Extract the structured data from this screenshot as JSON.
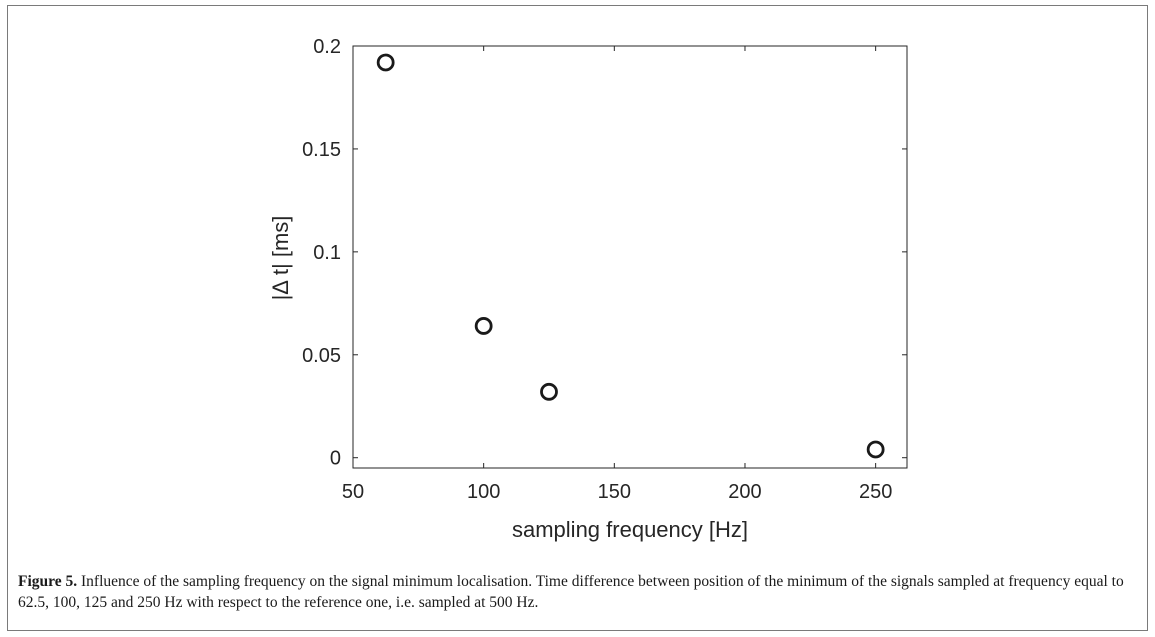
{
  "chart_data": {
    "type": "scatter",
    "xlabel": "sampling frequency [Hz]",
    "ylabel": "|Δ t| [ms]",
    "xlim": [
      50,
      262
    ],
    "ylim": [
      -0.005,
      0.2
    ],
    "x_ticks": [
      50,
      100,
      150,
      200,
      250
    ],
    "y_ticks": [
      0,
      0.05,
      0.1,
      0.15,
      0.2
    ],
    "x_tick_labels": [
      "50",
      "100",
      "150",
      "200",
      "250"
    ],
    "y_tick_labels": [
      "0",
      "0.05",
      "0.1",
      "0.15",
      "0.2"
    ],
    "grid": false,
    "marker": "open-circle",
    "marker_color": "#1a1a1a",
    "points": [
      {
        "x": 62.5,
        "y": 0.192
      },
      {
        "x": 100,
        "y": 0.064
      },
      {
        "x": 125,
        "y": 0.032
      },
      {
        "x": 250,
        "y": 0.004
      }
    ]
  },
  "caption": {
    "label": "Figure 5.",
    "text": " Influence of the sampling frequency on the signal minimum localisation. Time difference between position of the minimum of the signals sampled at frequency equal to 62.5, 100, 125 and 250 Hz with respect to the reference one, i.e. sampled at 500 Hz."
  }
}
